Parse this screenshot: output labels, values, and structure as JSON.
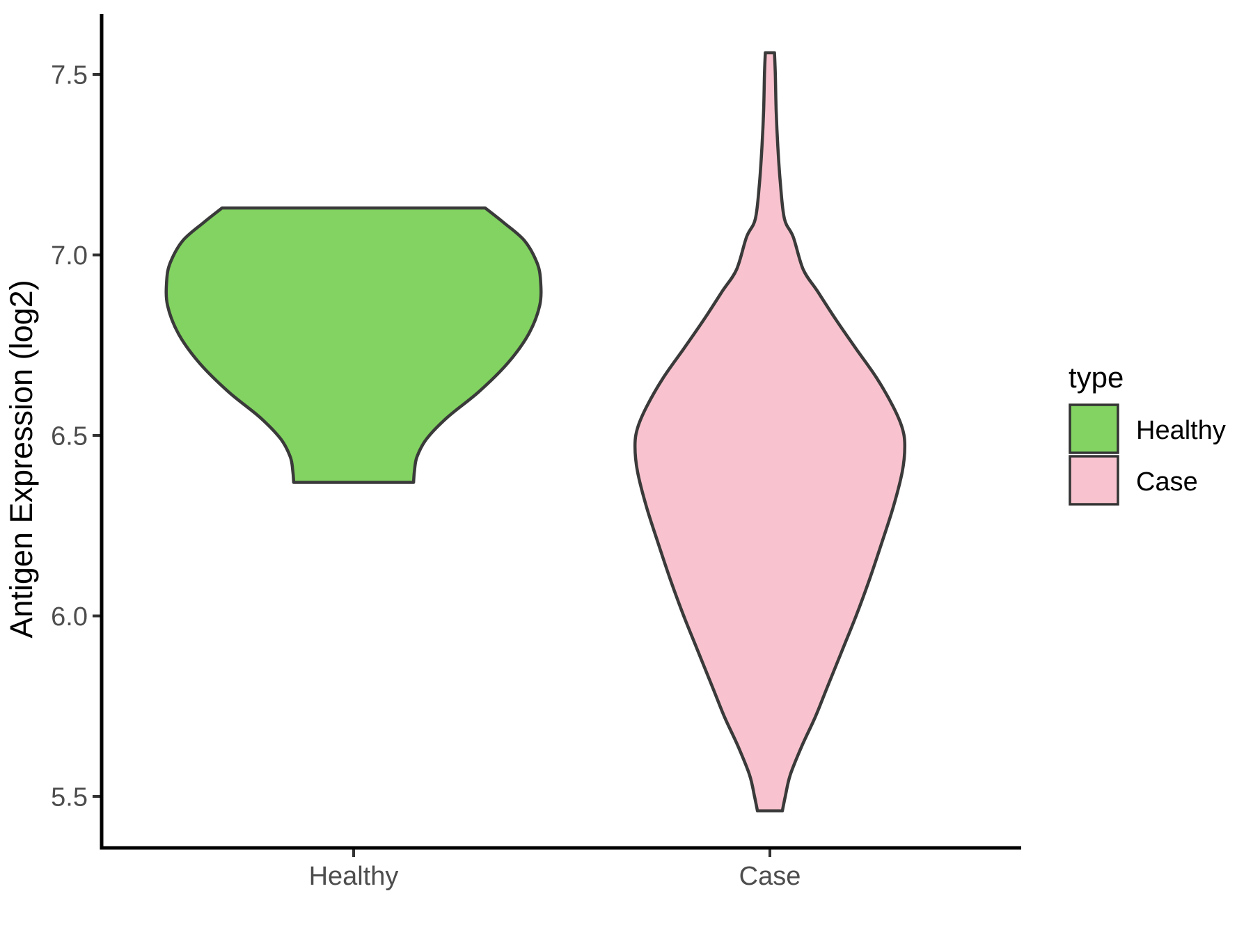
{
  "chart_data": {
    "type": "violin",
    "title": "",
    "xlabel": "",
    "ylabel": "Antigen Expression (log2)",
    "categories": [
      "Healthy",
      "Case"
    ],
    "y_ticks": [
      7.5,
      7.0,
      6.5,
      6.0,
      5.5
    ],
    "y_tick_labels": [
      "7.5",
      "7.0",
      "6.5",
      "6.0",
      "5.5"
    ],
    "y_range_shown": [
      5.36,
      7.67
    ],
    "grid": false,
    "background": "#ffffff",
    "axis_color": "#000000",
    "tick_color": "#333333",
    "tick_text_color": "#4d4d4d",
    "legend": {
      "title": "type",
      "position": "right",
      "entries": [
        {
          "label": "Healthy",
          "color": "#82d361"
        },
        {
          "label": "Case",
          "color": "#f8c3ce"
        }
      ]
    },
    "series": [
      {
        "name": "Healthy",
        "fill": "#82d361",
        "outline": "#3a3a3a",
        "min": 6.37,
        "max": 7.13,
        "widest_at": 6.92,
        "max_half_width_units": 0.449,
        "profile": [
          [
            7.13,
            0.316
          ],
          [
            7.09,
            0.36
          ],
          [
            7.04,
            0.41
          ],
          [
            6.98,
            0.44
          ],
          [
            6.93,
            0.449
          ],
          [
            6.86,
            0.447
          ],
          [
            6.78,
            0.42
          ],
          [
            6.7,
            0.37
          ],
          [
            6.62,
            0.3
          ],
          [
            6.55,
            0.225
          ],
          [
            6.49,
            0.175
          ],
          [
            6.44,
            0.152
          ],
          [
            6.4,
            0.146
          ],
          [
            6.37,
            0.144
          ]
        ]
      },
      {
        "name": "Case",
        "fill": "#f8c3ce",
        "outline": "#3a3a3a",
        "min": 5.46,
        "max": 7.56,
        "widest_at": 6.49,
        "max_half_width_units": 0.324,
        "profile": [
          [
            7.56,
            0.011
          ],
          [
            7.5,
            0.013
          ],
          [
            7.4,
            0.015
          ],
          [
            7.3,
            0.019
          ],
          [
            7.2,
            0.025
          ],
          [
            7.1,
            0.035
          ],
          [
            7.05,
            0.056
          ],
          [
            6.96,
            0.08
          ],
          [
            6.9,
            0.114
          ],
          [
            6.82,
            0.159
          ],
          [
            6.74,
            0.207
          ],
          [
            6.66,
            0.256
          ],
          [
            6.58,
            0.296
          ],
          [
            6.52,
            0.318
          ],
          [
            6.47,
            0.324
          ],
          [
            6.4,
            0.318
          ],
          [
            6.3,
            0.296
          ],
          [
            6.2,
            0.268
          ],
          [
            6.1,
            0.239
          ],
          [
            6.0,
            0.207
          ],
          [
            5.9,
            0.172
          ],
          [
            5.8,
            0.137
          ],
          [
            5.72,
            0.109
          ],
          [
            5.64,
            0.077
          ],
          [
            5.56,
            0.049
          ],
          [
            5.5,
            0.037
          ],
          [
            5.46,
            0.03
          ]
        ]
      }
    ]
  }
}
